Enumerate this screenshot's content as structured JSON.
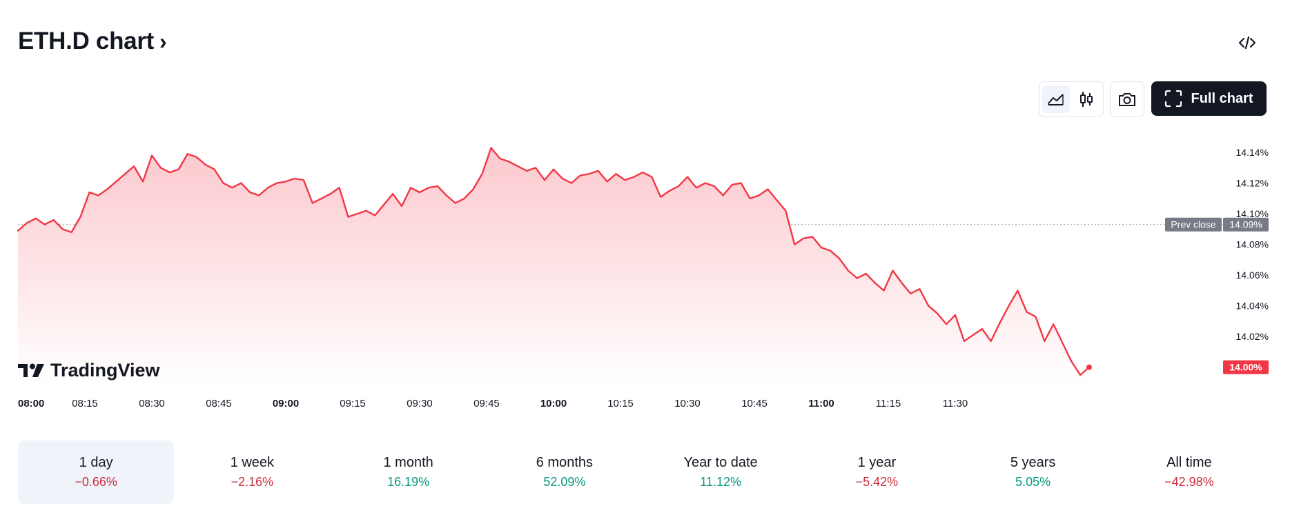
{
  "header": {
    "title": "ETH.D chart",
    "title_chevron": "›"
  },
  "toolbar": {
    "full_chart_label": "Full chart",
    "icons": [
      "embed-code-icon",
      "area-chart-icon",
      "candlestick-icon",
      "camera-icon",
      "fullscreen-icon"
    ]
  },
  "colors": {
    "line": "#f23645",
    "area_top": "#fcc6cb",
    "prev_close_badge": "#787b86",
    "last_price_badge": "#f23645",
    "negative": "#cc2f3c",
    "positive": "#089981"
  },
  "branding": {
    "logo_text": "TradingView"
  },
  "chart_data": {
    "type": "area",
    "y_unit": "%",
    "ylim": [
      13.99,
      14.145
    ],
    "y_ticks": [
      "14.14%",
      "14.12%",
      "14.10%",
      "14.08%",
      "14.06%",
      "14.04%",
      "14.02%"
    ],
    "x_ticks": [
      {
        "label": "08:00",
        "bold": true
      },
      {
        "label": "08:15",
        "bold": false
      },
      {
        "label": "08:30",
        "bold": false
      },
      {
        "label": "08:45",
        "bold": false
      },
      {
        "label": "09:00",
        "bold": true
      },
      {
        "label": "09:15",
        "bold": false
      },
      {
        "label": "09:30",
        "bold": false
      },
      {
        "label": "09:45",
        "bold": false
      },
      {
        "label": "10:00",
        "bold": true
      },
      {
        "label": "10:15",
        "bold": false
      },
      {
        "label": "10:30",
        "bold": false
      },
      {
        "label": "10:45",
        "bold": false
      },
      {
        "label": "11:00",
        "bold": true
      },
      {
        "label": "11:15",
        "bold": false
      },
      {
        "label": "11:30",
        "bold": false
      }
    ],
    "prev_close": {
      "label": "Prev close",
      "value": 14.093,
      "value_label": "14.09%"
    },
    "last_price": {
      "value": 14.0,
      "value_label": "14.00%"
    },
    "series": [
      {
        "points": [
          [
            "08:00",
            14.089
          ],
          [
            "08:02",
            14.094
          ],
          [
            "08:04",
            14.097
          ],
          [
            "08:06",
            14.093
          ],
          [
            "08:08",
            14.096
          ],
          [
            "08:10",
            14.09
          ],
          [
            "08:12",
            14.088
          ],
          [
            "08:14",
            14.098
          ],
          [
            "08:16",
            14.114
          ],
          [
            "08:18",
            14.112
          ],
          [
            "08:20",
            14.116
          ],
          [
            "08:22",
            14.121
          ],
          [
            "08:24",
            14.126
          ],
          [
            "08:26",
            14.131
          ],
          [
            "08:28",
            14.121
          ],
          [
            "08:30",
            14.138
          ],
          [
            "08:32",
            14.13
          ],
          [
            "08:34",
            14.127
          ],
          [
            "08:36",
            14.129
          ],
          [
            "08:38",
            14.139
          ],
          [
            "08:40",
            14.137
          ],
          [
            "08:42",
            14.132
          ],
          [
            "08:44",
            14.129
          ],
          [
            "08:46",
            14.12
          ],
          [
            "08:48",
            14.117
          ],
          [
            "08:50",
            14.12
          ],
          [
            "08:52",
            14.114
          ],
          [
            "08:54",
            14.112
          ],
          [
            "08:56",
            14.117
          ],
          [
            "08:58",
            14.12
          ],
          [
            "09:00",
            14.121
          ],
          [
            "09:02",
            14.123
          ],
          [
            "09:04",
            14.122
          ],
          [
            "09:06",
            14.107
          ],
          [
            "09:08",
            14.11
          ],
          [
            "09:10",
            14.113
          ],
          [
            "09:12",
            14.117
          ],
          [
            "09:14",
            14.098
          ],
          [
            "09:16",
            14.1
          ],
          [
            "09:18",
            14.102
          ],
          [
            "09:20",
            14.099
          ],
          [
            "09:22",
            14.106
          ],
          [
            "09:24",
            14.113
          ],
          [
            "09:26",
            14.105
          ],
          [
            "09:28",
            14.117
          ],
          [
            "09:30",
            14.114
          ],
          [
            "09:32",
            14.117
          ],
          [
            "09:34",
            14.118
          ],
          [
            "09:36",
            14.112
          ],
          [
            "09:38",
            14.107
          ],
          [
            "09:40",
            14.11
          ],
          [
            "09:42",
            14.116
          ],
          [
            "09:44",
            14.126
          ],
          [
            "09:46",
            14.143
          ],
          [
            "09:48",
            14.136
          ],
          [
            "09:50",
            14.134
          ],
          [
            "09:52",
            14.131
          ],
          [
            "09:54",
            14.128
          ],
          [
            "09:56",
            14.13
          ],
          [
            "09:58",
            14.122
          ],
          [
            "10:00",
            14.129
          ],
          [
            "10:02",
            14.123
          ],
          [
            "10:04",
            14.12
          ],
          [
            "10:06",
            14.125
          ],
          [
            "10:08",
            14.126
          ],
          [
            "10:10",
            14.128
          ],
          [
            "10:12",
            14.121
          ],
          [
            "10:14",
            14.126
          ],
          [
            "10:16",
            14.122
          ],
          [
            "10:18",
            14.124
          ],
          [
            "10:20",
            14.127
          ],
          [
            "10:22",
            14.124
          ],
          [
            "10:24",
            14.111
          ],
          [
            "10:26",
            14.115
          ],
          [
            "10:28",
            14.118
          ],
          [
            "10:30",
            14.124
          ],
          [
            "10:32",
            14.117
          ],
          [
            "10:34",
            14.12
          ],
          [
            "10:36",
            14.118
          ],
          [
            "10:38",
            14.112
          ],
          [
            "10:40",
            14.119
          ],
          [
            "10:42",
            14.12
          ],
          [
            "10:44",
            14.11
          ],
          [
            "10:46",
            14.112
          ],
          [
            "10:48",
            14.116
          ],
          [
            "10:50",
            14.109
          ],
          [
            "10:52",
            14.102
          ],
          [
            "10:54",
            14.08
          ],
          [
            "10:56",
            14.084
          ],
          [
            "10:58",
            14.085
          ],
          [
            "11:00",
            14.078
          ],
          [
            "11:02",
            14.076
          ],
          [
            "11:04",
            14.071
          ],
          [
            "11:06",
            14.063
          ],
          [
            "11:08",
            14.058
          ],
          [
            "11:10",
            14.061
          ],
          [
            "11:12",
            14.055
          ],
          [
            "11:14",
            14.05
          ],
          [
            "11:16",
            14.063
          ],
          [
            "11:18",
            14.055
          ],
          [
            "11:20",
            14.048
          ],
          [
            "11:22",
            14.051
          ],
          [
            "11:24",
            14.04
          ],
          [
            "11:26",
            14.035
          ],
          [
            "11:28",
            14.028
          ],
          [
            "11:30",
            14.034
          ],
          [
            "11:32",
            14.017
          ],
          [
            "11:34",
            14.021
          ],
          [
            "11:36",
            14.025
          ],
          [
            "11:38",
            14.017
          ],
          [
            "11:40",
            14.029
          ],
          [
            "11:42",
            14.04
          ],
          [
            "11:44",
            14.05
          ],
          [
            "11:46",
            14.036
          ],
          [
            "11:48",
            14.033
          ],
          [
            "11:50",
            14.017
          ],
          [
            "11:52",
            14.028
          ],
          [
            "11:54",
            14.016
          ],
          [
            "11:56",
            14.004
          ],
          [
            "11:58",
            13.995
          ],
          [
            "12:00",
            14.0
          ]
        ]
      }
    ]
  },
  "periods": [
    {
      "label": "1 day",
      "change": "−0.66%",
      "trend": "neg",
      "active": true
    },
    {
      "label": "1 week",
      "change": "−2.16%",
      "trend": "neg",
      "active": false
    },
    {
      "label": "1 month",
      "change": "16.19%",
      "trend": "pos",
      "active": false
    },
    {
      "label": "6 months",
      "change": "52.09%",
      "trend": "pos",
      "active": false
    },
    {
      "label": "Year to date",
      "change": "11.12%",
      "trend": "pos",
      "active": false
    },
    {
      "label": "1 year",
      "change": "−5.42%",
      "trend": "neg",
      "active": false
    },
    {
      "label": "5 years",
      "change": "5.05%",
      "trend": "pos",
      "active": false
    },
    {
      "label": "All time",
      "change": "−42.98%",
      "trend": "neg",
      "active": false
    }
  ]
}
